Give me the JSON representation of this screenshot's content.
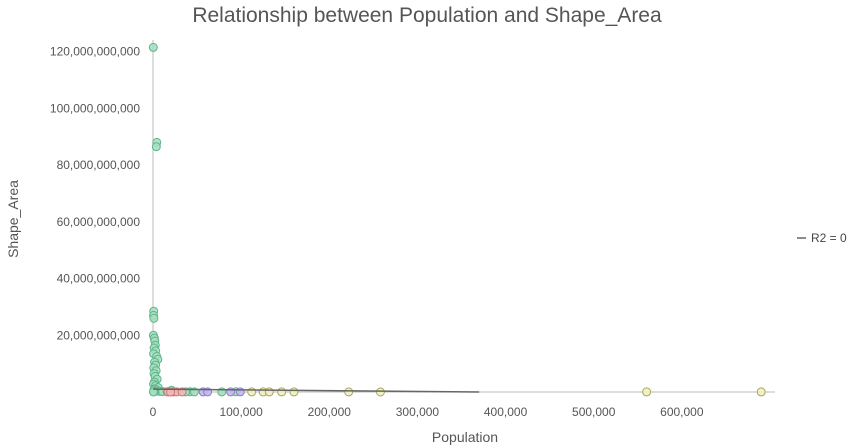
{
  "chart_data": {
    "type": "scatter",
    "title": "Relationship between Population and Shape_Area",
    "xlabel": "Population",
    "ylabel": "Shape_Area",
    "xlim": [
      0,
      700000
    ],
    "ylim": [
      0,
      122000000000
    ],
    "x_ticks": [
      0,
      100000,
      200000,
      300000,
      400000,
      500000,
      600000
    ],
    "x_tick_labels": [
      "0",
      "100,000",
      "200,000",
      "300,000",
      "400,000",
      "500,000",
      "600,000"
    ],
    "y_ticks": [
      20000000000,
      40000000000,
      60000000000,
      80000000000,
      100000000000,
      120000000000
    ],
    "y_tick_labels": [
      "20,000,000,000",
      "40,000,000,000",
      "60,000,000,000",
      "80,000,000,000",
      "100,000,000,000",
      "120,000,000,000"
    ],
    "legend": [
      {
        "label": "R2 = 0",
        "color": "#666666"
      }
    ],
    "legend_position": "right",
    "trendline": {
      "x": [
        0,
        370000
      ],
      "y": [
        1000000000,
        0
      ],
      "color": "#666666"
    },
    "series": [
      {
        "name": "green",
        "fill": "#a6dfc0",
        "stroke": "#5fb48a",
        "points": [
          [
            300,
            121500000000
          ],
          [
            4300,
            88000000000
          ],
          [
            3700,
            86500000000
          ],
          [
            800,
            28500000000
          ],
          [
            600,
            27000000000
          ],
          [
            1000,
            26000000000
          ],
          [
            400,
            20000000000
          ],
          [
            1500,
            19000000000
          ],
          [
            2000,
            18000000000
          ],
          [
            2600,
            16500000000
          ],
          [
            1200,
            15500000000
          ],
          [
            3100,
            14500000000
          ],
          [
            700,
            13500000000
          ],
          [
            4200,
            12500000000
          ],
          [
            5400,
            11500000000
          ],
          [
            1800,
            10500000000
          ],
          [
            2800,
            9500000000
          ],
          [
            900,
            8500000000
          ],
          [
            3500,
            7500000000
          ],
          [
            1300,
            6500000000
          ],
          [
            2400,
            5500000000
          ],
          [
            4600,
            4500000000
          ],
          [
            1700,
            3500000000
          ],
          [
            700,
            2800000000
          ],
          [
            3000,
            2200000000
          ],
          [
            5800,
            1600000000
          ],
          [
            2200,
            1100000000
          ],
          [
            1000,
            700000000
          ],
          [
            3800,
            400000000
          ],
          [
            7600,
            200000000
          ],
          [
            11000,
            150000000
          ],
          [
            1400,
            100000000
          ],
          [
            500,
            50000000
          ],
          [
            21000,
            600000000
          ],
          [
            16000,
            120000000
          ],
          [
            42000,
            60000000
          ],
          [
            37000,
            40000000
          ],
          [
            47000,
            30000000
          ],
          [
            78000,
            20000000
          ],
          [
            94000,
            60000000
          ]
        ]
      },
      {
        "name": "red",
        "fill": "#f2b8b8",
        "stroke": "#c97878",
        "points": [
          [
            17000,
            40000000
          ],
          [
            23000,
            30000000
          ],
          [
            27000,
            35000000
          ],
          [
            33000,
            25000000
          ],
          [
            20000,
            15000000
          ]
        ]
      },
      {
        "name": "purple",
        "fill": "#c2b8ec",
        "stroke": "#8c7fc9",
        "points": [
          [
            57000,
            30000000
          ],
          [
            62000,
            20000000
          ],
          [
            88000,
            40000000
          ],
          [
            99000,
            25000000
          ]
        ]
      },
      {
        "name": "yellow",
        "fill": "#f1f0c4",
        "stroke": "#a9a65a",
        "points": [
          [
            112000,
            30000000
          ],
          [
            125000,
            20000000
          ],
          [
            132000,
            40000000
          ],
          [
            146000,
            30000000
          ],
          [
            160000,
            25000000
          ],
          [
            222000,
            20000000
          ],
          [
            258000,
            15000000
          ],
          [
            560000,
            30000000
          ],
          [
            690000,
            20000000
          ]
        ]
      }
    ]
  }
}
